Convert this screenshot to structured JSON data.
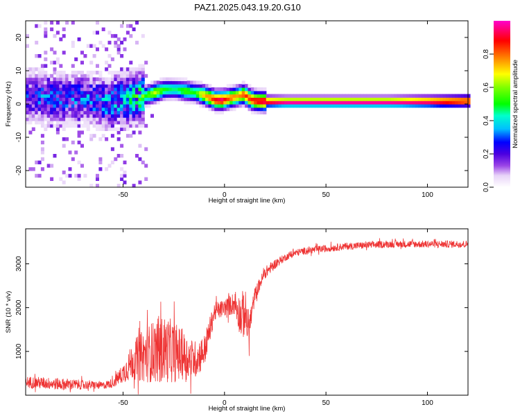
{
  "figure_title": "PAZ1.2025.043.19.20.G10",
  "colors": {
    "snr_line": "#ee3333",
    "spectrogram_colormap": [
      "#ffffff",
      "#f2e6fb",
      "#d9b8f4",
      "#b37ae8",
      "#8a2be2",
      "#4b00e0",
      "#0000ff",
      "#00bfff",
      "#00ffcc",
      "#00ff00",
      "#ffff00",
      "#ff8000",
      "#ff0000",
      "#ff00cc"
    ]
  },
  "chart_data": [
    {
      "type": "heatmap",
      "title": "",
      "xlabel": "Height of straight line (km)",
      "ylabel": "Frequency (Hz)",
      "xlim": [
        -98,
        120
      ],
      "ylim": [
        -25,
        25
      ],
      "x_ticks": [
        -50,
        0,
        50,
        100
      ],
      "y_ticks": [
        -20,
        -10,
        0,
        10,
        20
      ],
      "colorbar": {
        "label": "Normalized spectral amplitude",
        "range": [
          0,
          1
        ],
        "ticks": [
          "0.0",
          "0.2",
          "0.4",
          "0.6",
          "0.8"
        ]
      },
      "ridge": {
        "description_x": [
          -98,
          -90,
          -80,
          -70,
          -60,
          -50,
          -45,
          -40,
          -35,
          -30,
          -25,
          -20,
          -15,
          -12,
          -8,
          -5,
          -2,
          0,
          3,
          6,
          9,
          12,
          15,
          20,
          30,
          50,
          80,
          100,
          120
        ],
        "freq_hz": [
          2,
          1.5,
          1,
          1.5,
          0,
          1,
          1.5,
          2,
          3,
          4,
          4,
          3.5,
          3,
          2.5,
          1.5,
          0.8,
          0.8,
          1,
          1.5,
          2,
          2.5,
          1,
          0.5,
          0.3,
          0.2,
          0.2,
          0.2,
          0.3,
          0.5
        ],
        "amplitude": [
          0.25,
          0.3,
          0.3,
          0.3,
          0.35,
          0.4,
          0.45,
          0.5,
          0.65,
          0.5,
          0.45,
          0.55,
          0.5,
          0.7,
          0.8,
          0.9,
          0.95,
          0.85,
          0.8,
          0.75,
          0.85,
          0.85,
          0.9,
          0.95,
          1,
          1,
          1,
          1,
          0.95
        ]
      }
    },
    {
      "type": "line",
      "title": "",
      "xlabel": "Height of straight line (km)",
      "ylabel": "SNR (10 * v/v)",
      "xlim": [
        -98,
        120
      ],
      "ylim": [
        0,
        3800
      ],
      "x_ticks": [
        -50,
        0,
        50,
        100
      ],
      "y_ticks": [
        1000,
        2000,
        3000
      ],
      "envelope": {
        "x": [
          -98,
          -90,
          -80,
          -70,
          -60,
          -55,
          -50,
          -45,
          -40,
          -35,
          -30,
          -25,
          -20,
          -15,
          -10,
          -5,
          0,
          5,
          8,
          10,
          12,
          15,
          20,
          25,
          30,
          35,
          40,
          50,
          60,
          80,
          100,
          120
        ],
        "mean": [
          300,
          280,
          250,
          240,
          220,
          280,
          500,
          800,
          900,
          1000,
          1050,
          1000,
          900,
          800,
          1000,
          1900,
          2000,
          2100,
          1800,
          1900,
          1500,
          2300,
          2800,
          3000,
          3150,
          3250,
          3300,
          3350,
          3400,
          3450,
          3450,
          3450
        ],
        "spread": [
          250,
          250,
          250,
          200,
          150,
          200,
          400,
          800,
          1100,
          1300,
          1400,
          1300,
          1000,
          800,
          700,
          400,
          350,
          500,
          900,
          1100,
          700,
          300,
          250,
          200,
          150,
          150,
          150,
          150,
          150,
          150,
          150,
          150
        ]
      }
    }
  ]
}
